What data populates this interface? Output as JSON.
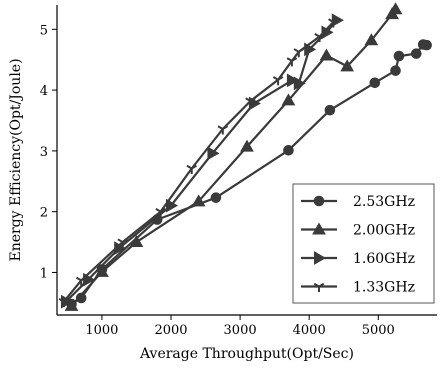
{
  "chart_data": {
    "type": "line",
    "xlabel": "Average Throughput(Opt/Sec)",
    "ylabel": "Energy Efficiency(Opt/Joule)",
    "xlim": [
      350,
      5850
    ],
    "ylim": [
      0.3,
      5.4
    ],
    "xticks": [
      1000,
      2000,
      3000,
      4000,
      5000
    ],
    "yticks": [
      1,
      2,
      3,
      4,
      5
    ],
    "legend_position": "bottom-right",
    "series": [
      {
        "name": "2.53GHz",
        "marker": "circle",
        "points": [
          [
            560,
            0.48
          ],
          [
            700,
            0.58
          ],
          [
            1000,
            1.05
          ],
          [
            1800,
            1.87
          ],
          [
            2650,
            2.23
          ],
          [
            3700,
            3.01
          ],
          [
            4300,
            3.67
          ],
          [
            4950,
            4.12
          ],
          [
            5250,
            4.32
          ],
          [
            5300,
            4.56
          ],
          [
            5550,
            4.6
          ],
          [
            5650,
            4.75
          ],
          [
            5700,
            4.74
          ]
        ]
      },
      {
        "name": "2.00GHz",
        "marker": "triangle",
        "points": [
          [
            560,
            0.45
          ],
          [
            1000,
            1.01
          ],
          [
            1500,
            1.5
          ],
          [
            2400,
            2.17
          ],
          [
            3100,
            3.07
          ],
          [
            3700,
            3.83
          ],
          [
            4250,
            4.57
          ],
          [
            4550,
            4.39
          ],
          [
            4900,
            4.82
          ],
          [
            5200,
            5.25
          ],
          [
            5250,
            5.33
          ]
        ]
      },
      {
        "name": "1.60GHz",
        "marker": "triangle-right",
        "points": [
          [
            480,
            0.52
          ],
          [
            800,
            0.88
          ],
          [
            1250,
            1.4
          ],
          [
            2000,
            2.1
          ],
          [
            2600,
            2.96
          ],
          [
            3200,
            3.78
          ],
          [
            3750,
            4.16
          ],
          [
            3850,
            4.11
          ],
          [
            4000,
            4.67
          ],
          [
            4250,
            4.95
          ],
          [
            4400,
            5.15
          ]
        ]
      },
      {
        "name": "1.33GHz",
        "marker": "tri-down",
        "points": [
          [
            450,
            0.52
          ],
          [
            700,
            0.87
          ],
          [
            1300,
            1.5
          ],
          [
            1850,
            2.0
          ],
          [
            2300,
            2.71
          ],
          [
            2750,
            3.36
          ],
          [
            3150,
            3.82
          ],
          [
            3550,
            4.17
          ],
          [
            3750,
            4.48
          ],
          [
            3850,
            4.63
          ],
          [
            4150,
            4.88
          ],
          [
            4350,
            5.12
          ]
        ]
      }
    ]
  }
}
